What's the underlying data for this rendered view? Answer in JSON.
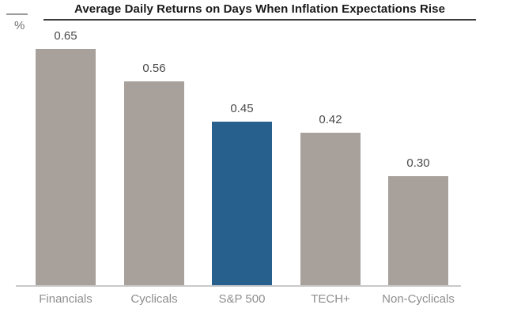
{
  "chart_data": {
    "type": "bar",
    "title": "Average Daily Returns on Days When Inflation Expectations Rise",
    "ylabel": "%",
    "categories": [
      "Financials",
      "Cyclicals",
      "S&P 500",
      "TECH+",
      "Non-Cyclicals"
    ],
    "values": [
      0.65,
      0.56,
      0.45,
      0.42,
      0.3
    ],
    "value_labels": [
      "0.65",
      "0.56",
      "0.45",
      "0.42",
      "0.30"
    ],
    "highlight_index": 2,
    "highlight_category": "S&P 500",
    "ylim": [
      0,
      0.78
    ],
    "grid": false,
    "legend": false,
    "colors": {
      "bar": "#a8a19b",
      "highlight_bar": "#27608d",
      "title_text": "#1a1a1a",
      "value_label": "#4a4a4a",
      "category_label": "#8e8e8e",
      "axis_line": "#c9c9c9",
      "title_rule": "#3a3a3a"
    }
  }
}
